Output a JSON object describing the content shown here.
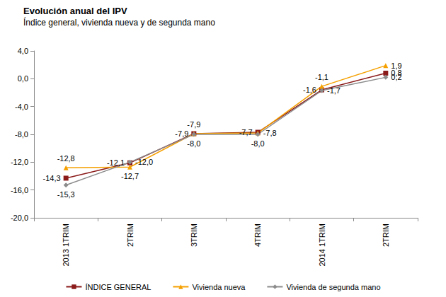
{
  "chart_data": {
    "type": "line",
    "title": "Evolución anual del IPV",
    "subtitle": "Índice general, vivienda nueva y de segunda mano",
    "categories": [
      "2013 1TRIM",
      "2TRIM",
      "3TRIM",
      "4TRIM",
      "2014 1TRIM",
      "2TRIM"
    ],
    "series": [
      {
        "name": "ÍNDICE GENERAL",
        "color": "#8b1a1a",
        "marker": "square",
        "values": [
          -14.3,
          -12.1,
          -7.9,
          -7.7,
          -1.6,
          0.8
        ],
        "value_labels": [
          "-14,3",
          "-12,1",
          "-7,9",
          "-7,7",
          "-1,6",
          "0,8"
        ]
      },
      {
        "name": "Vivienda nueva",
        "color": "#f5a000",
        "marker": "triangle",
        "values": [
          -12.8,
          -12.7,
          -7.9,
          -7.8,
          -1.1,
          1.9
        ],
        "value_labels": [
          "-12,8",
          "-12,7",
          "-7,9",
          "-7,8",
          "-1,1",
          "1,9"
        ]
      },
      {
        "name": "Vivienda de segunda mano",
        "color": "#8c8c8c",
        "marker": "diamond",
        "values": [
          -15.3,
          -12.0,
          -8.0,
          -8.0,
          -1.7,
          0.2
        ],
        "value_labels": [
          "-15,3",
          "-12,0",
          "-8,0",
          "-8,0",
          "-1,7",
          "0,2"
        ]
      }
    ],
    "ylim": [
      -20,
      4
    ],
    "yticks": [
      {
        "value": -20,
        "label": "-20,0"
      },
      {
        "value": -16,
        "label": "-16,0"
      },
      {
        "value": -12,
        "label": "-12,0"
      },
      {
        "value": -8,
        "label": "-8,0"
      },
      {
        "value": -4,
        "label": "-4,0"
      },
      {
        "value": 0,
        "label": "0,0"
      },
      {
        "value": 4,
        "label": "4,0"
      }
    ],
    "grid": false,
    "legend": "bottom",
    "data_labels": true
  }
}
